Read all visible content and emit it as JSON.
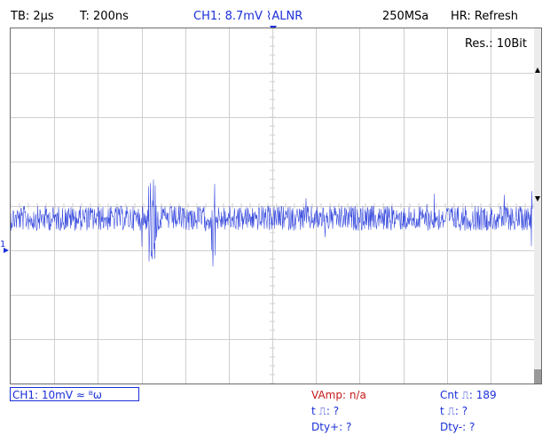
{
  "status_bar": {
    "timebase": "TB: 2µs",
    "trigger_time": "T: 200ns",
    "channel_trigger": "CH1: 8.7mV ⌇ALNR",
    "sample_rate": "250MSa",
    "hr_mode": "HR: Refresh"
  },
  "screen": {
    "resolution": "Res.: 10Bit",
    "channel_marker": "1"
  },
  "channel_box": {
    "label": "CH1: 10mV ≈ ᴮω"
  },
  "measurements": {
    "vamp": "VAmp: n/a",
    "count": "Cnt ⎍: 189",
    "t_pos_pulse": "t ⎍: ?",
    "t_neg_pulse": "t ⎍: ?",
    "duty_pos": "Dty+: ?",
    "duty_neg": "Dty-: ?"
  },
  "colors": {
    "trace": "#1a2fd8",
    "grid": "#cfcfcf",
    "measurement_red": "#c41a1a"
  }
}
